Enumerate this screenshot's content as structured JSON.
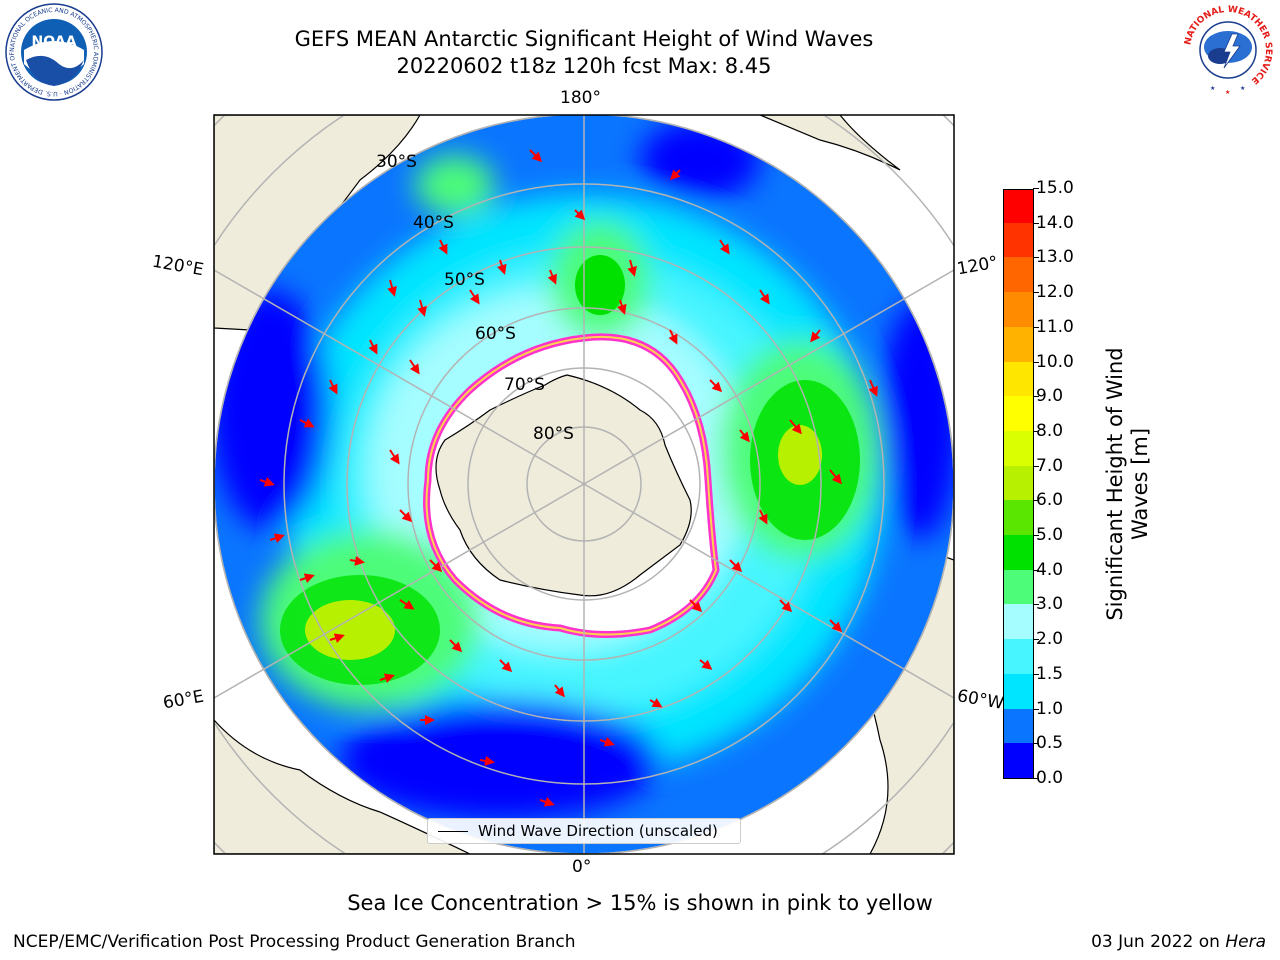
{
  "title": {
    "line1": "GEFS MEAN Antarctic Significant Height of Wind Waves",
    "line2": "20220602 t18z 120h fcst   Max: 8.45"
  },
  "map": {
    "longitude_labels": {
      "top": "180°",
      "bottom": "0°",
      "left_upper": "120°E",
      "left_lower": "60°E",
      "right_upper": "120°",
      "right_lower": "60°W"
    },
    "latitude_labels": [
      "30°S",
      "40°S",
      "50°S",
      "60°S",
      "70°S",
      "80°S"
    ],
    "legend_label": "Wind Wave Direction (unscaled)",
    "colors": {
      "land": "#efecdc",
      "ice": "#ffffff",
      "ice_edge": [
        "#ff33cc",
        "#ffd24d"
      ],
      "arrows": "#ff0000",
      "grid": "#b3b3b3"
    }
  },
  "colorbar": {
    "label_line1": "Significant Height of Wind",
    "label_line2": "Waves [m]",
    "ticks": [
      "0.0",
      "0.5",
      "1.0",
      "1.5",
      "2.0",
      "3.0",
      "4.0",
      "5.0",
      "6.0",
      "7.0",
      "8.0",
      "9.0",
      "10.0",
      "11.0",
      "12.0",
      "13.0",
      "14.0",
      "15.0"
    ],
    "colors": [
      "#0000ff",
      "#0a75ff",
      "#00e5ff",
      "#46f5ff",
      "#a6fdff",
      "#4dfc79",
      "#00e100",
      "#5ae600",
      "#b7f000",
      "#d9ff00",
      "#ffff00",
      "#ffe600",
      "#ffb300",
      "#ff8c00",
      "#ff6600",
      "#ff3300",
      "#ff0000"
    ]
  },
  "footer": {
    "note": "Sea Ice Concentration > 15% is shown in pink to yellow",
    "left": "NCEP/EMC/Verification Post Processing Product Generation Branch",
    "right_date": "03 Jun 2022 on ",
    "right_system": "Hera"
  },
  "logos": {
    "left_text": "NOAA",
    "left_ring_text": "NATIONAL OCEANIC AND ATMOSPHERIC ADMINISTRATION · U.S. DEPARTMENT OF COMMERCE",
    "right_ring_text": "NATIONAL WEATHER SERVICE"
  }
}
